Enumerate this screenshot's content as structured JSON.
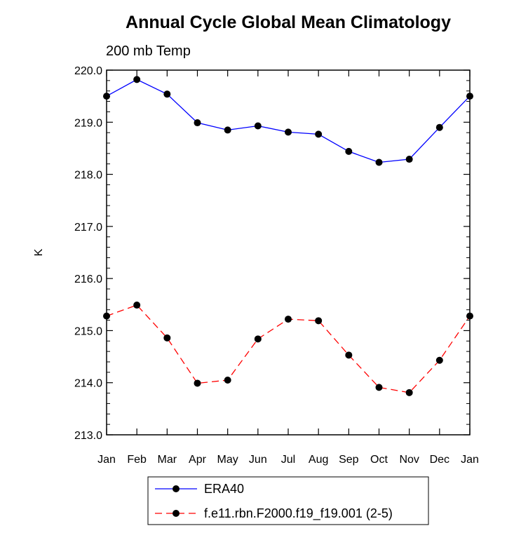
{
  "chart_data": {
    "type": "line",
    "title": "Annual Cycle Global Mean Climatology",
    "subtitle": "200 mb Temp",
    "xlabel": "",
    "ylabel": "K",
    "categories": [
      "Jan",
      "Feb",
      "Mar",
      "Apr",
      "May",
      "Jun",
      "Jul",
      "Aug",
      "Sep",
      "Oct",
      "Nov",
      "Dec",
      "Jan"
    ],
    "ylim": [
      213.0,
      220.0
    ],
    "yticks": [
      "213.0",
      "214.0",
      "215.0",
      "216.0",
      "217.0",
      "218.0",
      "219.0",
      "220.0"
    ],
    "grid": false,
    "legend_position": "bottom",
    "series": [
      {
        "name": "ERA40",
        "color": "#0000ff",
        "line_style": "solid",
        "marker": "filled-circle",
        "values": [
          219.5,
          219.82,
          219.54,
          218.99,
          218.85,
          218.93,
          218.81,
          218.77,
          218.44,
          218.23,
          218.29,
          218.9,
          219.5
        ]
      },
      {
        "name": "f.e11.rbn.F2000.f19_f19.001 (2-5)",
        "color": "#ff0000",
        "line_style": "dashed",
        "marker": "filled-circle",
        "values": [
          215.28,
          215.49,
          214.86,
          213.99,
          214.05,
          214.84,
          215.22,
          215.19,
          214.53,
          213.91,
          213.81,
          214.43,
          215.28
        ]
      }
    ]
  }
}
